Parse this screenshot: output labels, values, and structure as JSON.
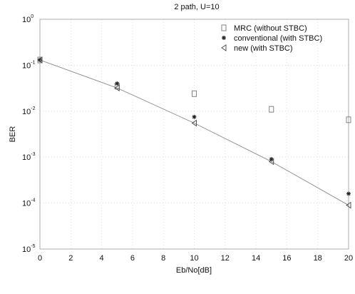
{
  "chart_data": {
    "type": "line",
    "title": "2 path, U=10",
    "xlabel": "Eb/No[dB]",
    "ylabel": "BER",
    "xlim": [
      0,
      20
    ],
    "ylim": [
      1e-05,
      1
    ],
    "yscale": "log",
    "xticks": [
      "0",
      "2",
      "4",
      "6",
      "8",
      "10",
      "12",
      "14",
      "16",
      "18",
      "20"
    ],
    "yticks": [
      {
        "base": "10",
        "exp": "0"
      },
      {
        "base": "10",
        "exp": "-1"
      },
      {
        "base": "10",
        "exp": "-2"
      },
      {
        "base": "10",
        "exp": "-3"
      },
      {
        "base": "10",
        "exp": "-4"
      },
      {
        "base": "10",
        "exp": "-5"
      }
    ],
    "grid": true,
    "legend_position": "top-right",
    "series": [
      {
        "name": "MRC (without STBC)",
        "marker": "square",
        "x": [
          0,
          5,
          10,
          15,
          20
        ],
        "y": [
          0.13,
          0.035,
          0.024,
          0.011,
          0.0065
        ]
      },
      {
        "name": "conventional (with STBC)",
        "marker": "star",
        "x": [
          0,
          5,
          10,
          15,
          20
        ],
        "y": [
          0.13,
          0.04,
          0.0075,
          0.0009,
          0.00016
        ]
      },
      {
        "name": "new (with STBC)",
        "marker": "triangle",
        "x": [
          0,
          5,
          10,
          15,
          20
        ],
        "y": [
          0.13,
          0.032,
          0.0055,
          0.0008,
          9e-05
        ]
      }
    ]
  }
}
